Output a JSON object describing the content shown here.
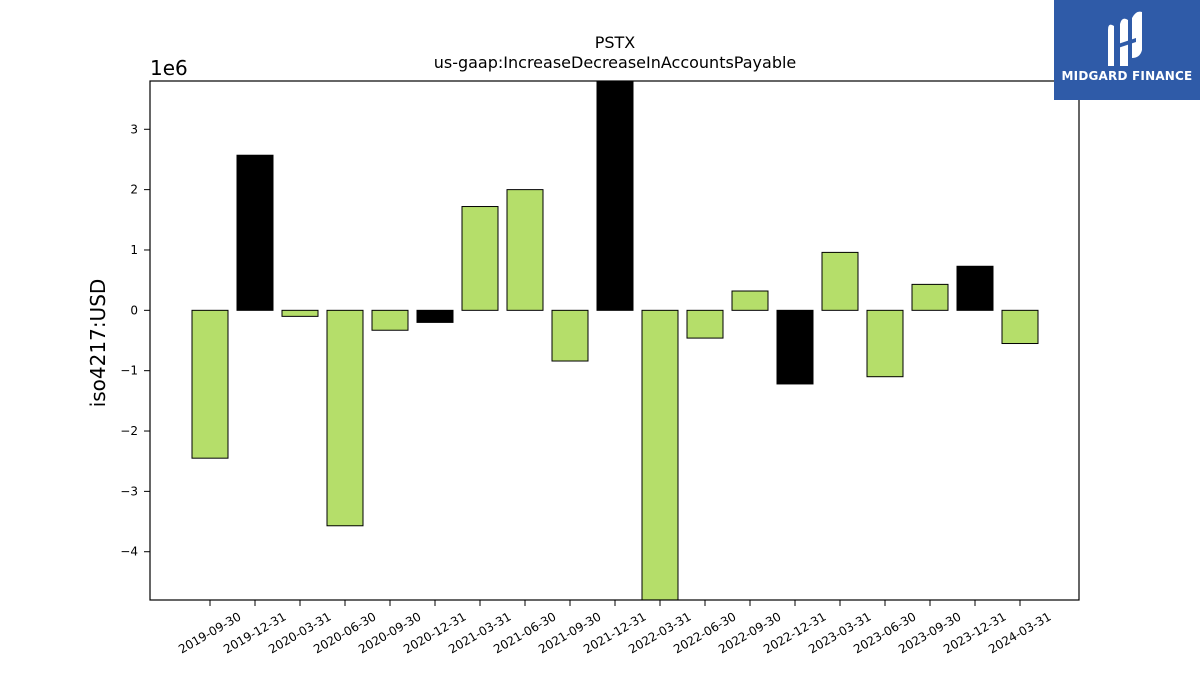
{
  "chart_data": {
    "type": "bar",
    "title": "PSTX",
    "subtitle": "us-gaap:IncreaseDecreaseInAccountsPayable",
    "ylabel": "iso4217:USD",
    "xlabel": "",
    "offset_label": "1e6",
    "ylim": [
      -4800000,
      3800000
    ],
    "yticks": [
      3000000,
      2000000,
      1000000,
      0,
      -1000000,
      -2000000,
      -3000000,
      -4000000
    ],
    "ytick_labels": [
      "3",
      "2",
      "1",
      "0",
      "−1",
      "−2",
      "−3",
      "−4"
    ],
    "categories": [
      "2019-09-30",
      "2019-12-31",
      "2020-03-31",
      "2020-06-30",
      "2020-09-30",
      "2020-12-31",
      "2021-03-31",
      "2021-06-30",
      "2021-09-30",
      "2021-12-31",
      "2022-03-31",
      "2022-06-30",
      "2022-09-30",
      "2022-12-31",
      "2023-03-31",
      "2023-06-30",
      "2023-09-30",
      "2023-12-31",
      "2024-03-31"
    ],
    "values": [
      -2450000,
      2570000,
      -100000,
      -3570000,
      -330000,
      -200000,
      1720000,
      2000000,
      -840000,
      3800000,
      -4800000,
      -460000,
      320000,
      -1220000,
      960000,
      -1100000,
      430000,
      730000,
      -550000
    ],
    "bar_colors": [
      "#b5de6a",
      "#000000",
      "#b5de6a",
      "#b5de6a",
      "#b5de6a",
      "#000000",
      "#b5de6a",
      "#b5de6a",
      "#b5de6a",
      "#000000",
      "#b5de6a",
      "#b5de6a",
      "#b5de6a",
      "#000000",
      "#b5de6a",
      "#b5de6a",
      "#b5de6a",
      "#000000",
      "#b5de6a"
    ],
    "grid": false,
    "legend": "none"
  },
  "logo": {
    "text": "MIDGARD FINANCE",
    "background": "#2f5ba8"
  }
}
